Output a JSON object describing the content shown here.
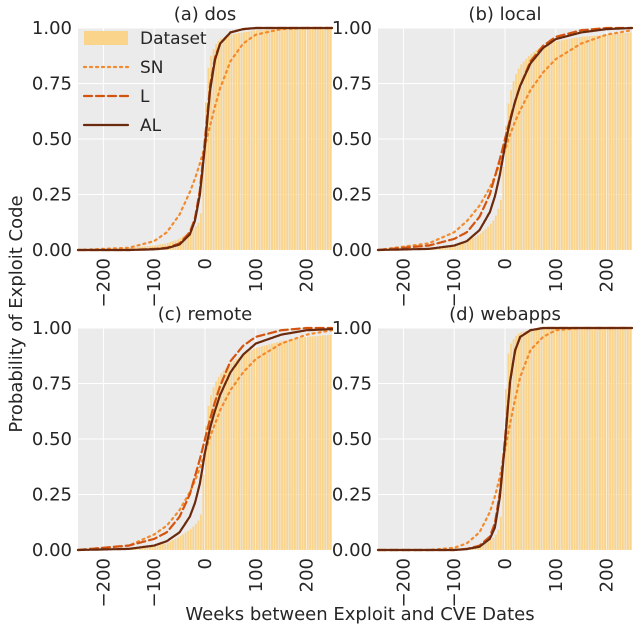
{
  "figure": {
    "xlabel": "Weeks between Exploit and CVE Dates",
    "ylabel": "Probability of Exploit Code"
  },
  "colors": {
    "dataset": "#fbd48c",
    "dataset_edge": "#f5c66e",
    "SN": "#f28a2e",
    "L": "#d4540f",
    "AL": "#6b2a0e",
    "panel_bg": "#ebebeb",
    "grid": "#ffffff"
  },
  "legend": {
    "placement": "top-left of panel (a)",
    "entries": [
      {
        "key": "dataset",
        "label": "Dataset",
        "style": "bar"
      },
      {
        "key": "SN",
        "label": "SN",
        "style": "dotted"
      },
      {
        "key": "L",
        "label": "L",
        "style": "dashed"
      },
      {
        "key": "AL",
        "label": "AL",
        "style": "solid"
      }
    ]
  },
  "chart_data": [
    {
      "type": "line",
      "title": "(a) dos",
      "xlim": [
        -250,
        250
      ],
      "ylim": [
        0,
        1
      ],
      "xticks": [
        -200,
        -100,
        0,
        100,
        200
      ],
      "yticks": [
        0.0,
        0.25,
        0.5,
        0.75,
        1.0
      ],
      "ytick_labels": [
        "0.00",
        "0.25",
        "0.50",
        "0.75",
        "1.00"
      ],
      "histogram_cdf": {
        "x": [
          -250,
          -150,
          -100,
          -75,
          -50,
          -30,
          -20,
          -10,
          -5,
          0,
          5,
          10,
          20,
          30,
          50,
          75,
          100,
          150,
          200,
          250
        ],
        "y": [
          0.0,
          0.01,
          0.02,
          0.03,
          0.05,
          0.08,
          0.1,
          0.13,
          0.2,
          0.55,
          0.78,
          0.86,
          0.92,
          0.95,
          0.97,
          0.98,
          0.99,
          0.995,
          1.0,
          1.0
        ]
      },
      "series": [
        {
          "name": "SN",
          "x": [
            -250,
            -150,
            -100,
            -75,
            -50,
            -30,
            -20,
            -10,
            0,
            10,
            20,
            30,
            50,
            75,
            100,
            150,
            200,
            250
          ],
          "y": [
            0.0,
            0.01,
            0.04,
            0.08,
            0.16,
            0.26,
            0.32,
            0.39,
            0.47,
            0.56,
            0.65,
            0.73,
            0.85,
            0.93,
            0.97,
            0.995,
            1.0,
            1.0
          ]
        },
        {
          "name": "L",
          "x": [
            -250,
            -150,
            -100,
            -75,
            -50,
            -30,
            -20,
            -10,
            0,
            10,
            20,
            30,
            50,
            75,
            100,
            150,
            200,
            250
          ],
          "y": [
            0.0,
            0.0,
            0.005,
            0.01,
            0.03,
            0.08,
            0.14,
            0.27,
            0.5,
            0.74,
            0.87,
            0.93,
            0.98,
            0.995,
            1.0,
            1.0,
            1.0,
            1.0
          ]
        },
        {
          "name": "AL",
          "x": [
            -250,
            -150,
            -100,
            -75,
            -50,
            -30,
            -20,
            -10,
            0,
            10,
            20,
            30,
            50,
            75,
            100,
            150,
            200,
            250
          ],
          "y": [
            0.0,
            0.0,
            0.003,
            0.008,
            0.025,
            0.07,
            0.13,
            0.25,
            0.47,
            0.72,
            0.86,
            0.93,
            0.98,
            0.995,
            1.0,
            1.0,
            1.0,
            1.0
          ]
        }
      ]
    },
    {
      "type": "line",
      "title": "(b) local",
      "xlim": [
        -250,
        250
      ],
      "ylim": [
        0,
        1
      ],
      "xticks": [
        -200,
        -100,
        0,
        100,
        200
      ],
      "yticks": [
        0.0,
        0.25,
        0.5,
        0.75,
        1.0
      ],
      "ytick_labels": [
        "0.00",
        "0.25",
        "0.50",
        "0.75",
        "1.00"
      ],
      "histogram_cdf": {
        "x": [
          -250,
          -150,
          -100,
          -75,
          -50,
          -30,
          -20,
          -10,
          -5,
          0,
          5,
          10,
          20,
          30,
          50,
          75,
          100,
          150,
          200,
          250
        ],
        "y": [
          0.0,
          0.01,
          0.02,
          0.04,
          0.07,
          0.11,
          0.14,
          0.2,
          0.25,
          0.5,
          0.62,
          0.7,
          0.78,
          0.83,
          0.88,
          0.92,
          0.94,
          0.96,
          0.97,
          0.98
        ]
      },
      "series": [
        {
          "name": "SN",
          "x": [
            -250,
            -150,
            -100,
            -75,
            -50,
            -30,
            -20,
            -10,
            0,
            10,
            20,
            30,
            50,
            75,
            100,
            150,
            200,
            250
          ],
          "y": [
            0.0,
            0.03,
            0.08,
            0.13,
            0.2,
            0.28,
            0.33,
            0.39,
            0.45,
            0.52,
            0.58,
            0.63,
            0.72,
            0.8,
            0.86,
            0.93,
            0.97,
            0.99
          ]
        },
        {
          "name": "L",
          "x": [
            -250,
            -150,
            -100,
            -75,
            -50,
            -30,
            -20,
            -10,
            0,
            10,
            20,
            30,
            50,
            75,
            100,
            150,
            200,
            250
          ],
          "y": [
            0.0,
            0.02,
            0.05,
            0.08,
            0.15,
            0.25,
            0.33,
            0.41,
            0.5,
            0.59,
            0.67,
            0.74,
            0.85,
            0.92,
            0.96,
            0.99,
            1.0,
            1.0
          ]
        },
        {
          "name": "AL",
          "x": [
            -250,
            -150,
            -100,
            -75,
            -50,
            -30,
            -20,
            -10,
            0,
            10,
            20,
            30,
            50,
            75,
            100,
            150,
            200,
            250
          ],
          "y": [
            0.0,
            0.005,
            0.02,
            0.04,
            0.09,
            0.17,
            0.24,
            0.34,
            0.47,
            0.58,
            0.67,
            0.74,
            0.84,
            0.91,
            0.95,
            0.98,
            0.995,
            1.0
          ]
        }
      ]
    },
    {
      "type": "line",
      "title": "(c) remote",
      "xlim": [
        -250,
        250
      ],
      "ylim": [
        0,
        1
      ],
      "xticks": [
        -200,
        -100,
        0,
        100,
        200
      ],
      "yticks": [
        0.0,
        0.25,
        0.5,
        0.75,
        1.0
      ],
      "ytick_labels": [
        "0.00",
        "0.25",
        "0.50",
        "0.75",
        "1.00"
      ],
      "histogram_cdf": {
        "x": [
          -250,
          -150,
          -100,
          -75,
          -50,
          -30,
          -20,
          -10,
          -5,
          0,
          5,
          10,
          20,
          30,
          50,
          75,
          100,
          150,
          200,
          250
        ],
        "y": [
          0.0,
          0.01,
          0.02,
          0.03,
          0.06,
          0.09,
          0.11,
          0.14,
          0.18,
          0.5,
          0.62,
          0.68,
          0.75,
          0.79,
          0.84,
          0.88,
          0.91,
          0.94,
          0.96,
          0.97
        ]
      },
      "series": [
        {
          "name": "SN",
          "x": [
            -250,
            -150,
            -100,
            -75,
            -50,
            -30,
            -20,
            -10,
            0,
            10,
            20,
            30,
            50,
            75,
            100,
            150,
            200,
            250
          ],
          "y": [
            0.0,
            0.02,
            0.07,
            0.11,
            0.18,
            0.26,
            0.31,
            0.37,
            0.44,
            0.51,
            0.57,
            0.63,
            0.72,
            0.8,
            0.86,
            0.93,
            0.97,
            0.99
          ]
        },
        {
          "name": "L",
          "x": [
            -250,
            -150,
            -100,
            -75,
            -50,
            -30,
            -20,
            -10,
            0,
            10,
            20,
            30,
            50,
            75,
            100,
            150,
            200,
            250
          ],
          "y": [
            0.0,
            0.02,
            0.05,
            0.08,
            0.15,
            0.25,
            0.33,
            0.41,
            0.5,
            0.59,
            0.67,
            0.74,
            0.85,
            0.92,
            0.96,
            0.99,
            1.0,
            1.0
          ]
        },
        {
          "name": "AL",
          "x": [
            -250,
            -150,
            -100,
            -75,
            -50,
            -30,
            -20,
            -10,
            0,
            10,
            20,
            30,
            50,
            75,
            100,
            150,
            200,
            250
          ],
          "y": [
            0.0,
            0.005,
            0.02,
            0.04,
            0.08,
            0.15,
            0.21,
            0.3,
            0.44,
            0.55,
            0.63,
            0.7,
            0.8,
            0.88,
            0.93,
            0.97,
            0.99,
            0.995
          ]
        }
      ]
    },
    {
      "type": "line",
      "title": "(d) webapps",
      "xlim": [
        -250,
        250
      ],
      "ylim": [
        0,
        1
      ],
      "xticks": [
        -200,
        -100,
        0,
        100,
        200
      ],
      "yticks": [
        0.0,
        0.25,
        0.5,
        0.75,
        1.0
      ],
      "ytick_labels": [
        "0.00",
        "0.25",
        "0.50",
        "0.75",
        "1.00"
      ],
      "histogram_cdf": {
        "x": [
          -250,
          -150,
          -100,
          -75,
          -50,
          -30,
          -20,
          -10,
          -5,
          0,
          5,
          10,
          20,
          30,
          50,
          75,
          100,
          150,
          200,
          250
        ],
        "y": [
          0.0,
          0.0,
          0.005,
          0.01,
          0.02,
          0.04,
          0.06,
          0.1,
          0.2,
          0.6,
          0.85,
          0.92,
          0.96,
          0.98,
          0.99,
          0.995,
          1.0,
          1.0,
          1.0,
          1.0
        ]
      },
      "series": [
        {
          "name": "SN",
          "x": [
            -250,
            -150,
            -100,
            -75,
            -50,
            -30,
            -20,
            -10,
            0,
            10,
            20,
            30,
            50,
            75,
            100,
            150,
            200,
            250
          ],
          "y": [
            0.0,
            0.0,
            0.01,
            0.03,
            0.08,
            0.17,
            0.24,
            0.33,
            0.45,
            0.57,
            0.68,
            0.78,
            0.9,
            0.96,
            0.99,
            1.0,
            1.0,
            1.0
          ]
        },
        {
          "name": "L",
          "x": [
            -250,
            -150,
            -100,
            -75,
            -50,
            -30,
            -20,
            -10,
            0,
            10,
            20,
            30,
            50,
            75,
            100,
            150,
            200,
            250
          ],
          "y": [
            0.0,
            0.0,
            0.0,
            0.005,
            0.02,
            0.06,
            0.12,
            0.26,
            0.5,
            0.76,
            0.9,
            0.96,
            0.99,
            1.0,
            1.0,
            1.0,
            1.0,
            1.0
          ]
        },
        {
          "name": "AL",
          "x": [
            -250,
            -150,
            -100,
            -75,
            -50,
            -30,
            -20,
            -10,
            0,
            10,
            20,
            30,
            50,
            75,
            100,
            150,
            200,
            250
          ],
          "y": [
            0.0,
            0.0,
            0.0,
            0.004,
            0.015,
            0.05,
            0.1,
            0.24,
            0.48,
            0.76,
            0.9,
            0.96,
            0.99,
            1.0,
            1.0,
            1.0,
            1.0,
            1.0
          ]
        }
      ]
    }
  ]
}
